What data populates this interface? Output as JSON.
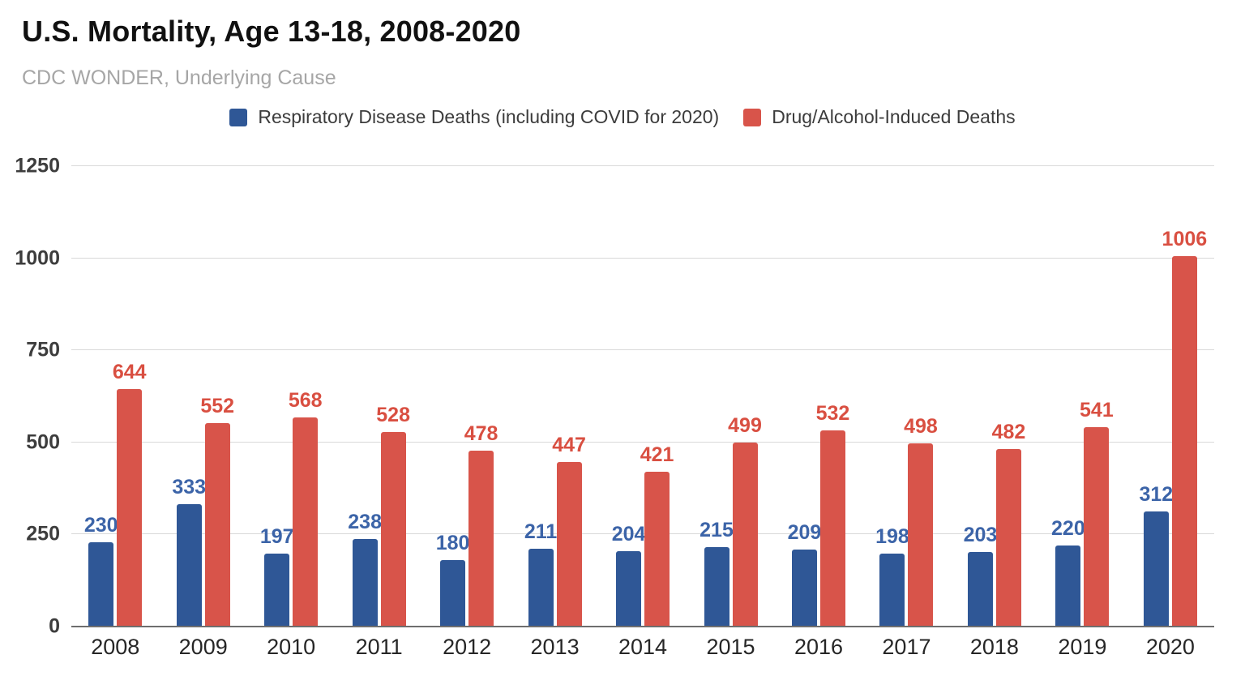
{
  "header": {
    "title": "U.S. Mortality, Age 13-18, 2008-2020",
    "subtitle": "CDC WONDER, Underlying Cause"
  },
  "chart_data": {
    "type": "bar",
    "title": "U.S. Mortality, Age 13-18, 2008-2020",
    "subtitle": "CDC WONDER, Underlying Cause",
    "categories": [
      "2008",
      "2009",
      "2010",
      "2011",
      "2012",
      "2013",
      "2014",
      "2015",
      "2016",
      "2017",
      "2018",
      "2019",
      "2020"
    ],
    "series": [
      {
        "name": "Respiratory Disease Deaths (including COVID for 2020)",
        "color": "#2f5796",
        "label_color": "#3c64a8",
        "values": [
          230,
          333,
          197,
          238,
          180,
          211,
          204,
          215,
          209,
          198,
          203,
          220,
          312
        ]
      },
      {
        "name": "Drug/Alcohol-Induced Deaths",
        "color": "#d8544a",
        "label_color": "#d94f41",
        "values": [
          644,
          552,
          568,
          528,
          478,
          447,
          421,
          499,
          532,
          498,
          482,
          541,
          1006
        ]
      }
    ],
    "xlabel": "",
    "ylabel": "",
    "ylim": [
      0,
      1250
    ],
    "yticks": [
      0,
      250,
      500,
      750,
      1000,
      1250
    ],
    "grid": true,
    "legend_position": "top",
    "data_labels": true,
    "axis_text_color": "#3d3d3d",
    "gridline_color": "#d9d9d9",
    "baseline_color": "#6e6e6e",
    "background_color": "#ffffff"
  }
}
